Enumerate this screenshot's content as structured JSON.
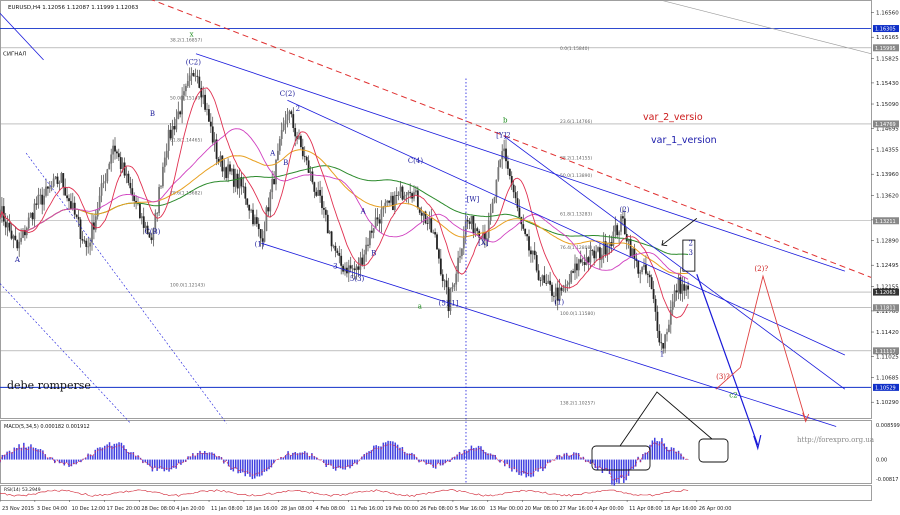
{
  "header": {
    "title": "EURUSD,H4 1.12056 1.12087 1.11999 1.12063"
  },
  "watermark": "http://forexpro.org.ua",
  "main_price": {
    "ylim": [
      1.1002,
      1.167
    ],
    "price_ticks": [
      "1.16560",
      "1.16165",
      "1.15825",
      "1.15430",
      "1.15090",
      "1.14695",
      "1.14355",
      "1.13960",
      "1.13620",
      "1.13225",
      "1.12890",
      "1.12495",
      "1.12155",
      "1.11760",
      "1.11420",
      "1.11025",
      "1.10685",
      "1.10290"
    ],
    "levels": [
      {
        "label": "1.16305",
        "value": 1.16305,
        "color": "#ffffff",
        "bg": "#1030c8"
      },
      {
        "label": "1.15995",
        "value": 1.15995,
        "color": "#ffffff",
        "bg": "#888888"
      },
      {
        "label": "1.14769",
        "value": 1.14769,
        "color": "#ffffff",
        "bg": "#888888"
      },
      {
        "label": "1.13211",
        "value": 1.13211,
        "color": "#ffffff",
        "bg": "#888888"
      },
      {
        "label": "1.12063",
        "value": 1.12063,
        "color": "#ffffff",
        "bg": "#333333"
      },
      {
        "label": "1.11811",
        "value": 1.11811,
        "color": "#ffffff",
        "bg": "#888888"
      },
      {
        "label": "1.11117",
        "value": 1.11117,
        "color": "#ffffff",
        "bg": "#888888"
      },
      {
        "label": "1.10529",
        "value": 1.10529,
        "color": "#ffffff",
        "bg": "#1030c8"
      }
    ],
    "fib_labels": [
      {
        "text": "38.2(1.16857)",
        "x": 42,
        "y": 1.1608
      },
      {
        "text": "0.0(1.15840)",
        "x": 615,
        "y": 1.1594
      },
      {
        "text": "50.0(1.15149)",
        "x": 42,
        "y": 1.1515
      },
      {
        "text": "23.6(1.14766)",
        "x": 615,
        "y": 1.1477
      },
      {
        "text": "61.8(1.14465)",
        "x": 42,
        "y": 1.1447
      },
      {
        "text": "38.2(1.14155)",
        "x": 615,
        "y": 1.1418
      },
      {
        "text": "50.0(1.13890)",
        "x": 615,
        "y": 1.139
      },
      {
        "text": "78.6(1.13682)",
        "x": 42,
        "y": 1.1362
      },
      {
        "text": "61.8(1.13283)",
        "x": 615,
        "y": 1.1328
      },
      {
        "text": "76.4(1.12808)",
        "x": 615,
        "y": 1.1274
      },
      {
        "text": "100.0(1.12143)",
        "x": 42,
        "y": 1.1214
      },
      {
        "text": "100.0(1.11580)",
        "x": 615,
        "y": 1.1168
      },
      {
        "text": "138.2(1.10257)",
        "x": 615,
        "y": 1.1024
      }
    ],
    "signal_label": "СИГНАЛ",
    "left_label": "debe romperse",
    "var2_label": "var_2_versio",
    "var1_label": "var_1_version",
    "wave_labels": [
      {
        "text": "x",
        "x": 0.22,
        "y": 1.1618,
        "color": "#1a8a1a"
      },
      {
        "text": "(C2)",
        "x": 0.222,
        "y": 1.1573,
        "color": "#1a1a9a"
      },
      {
        "text": "B",
        "x": 0.175,
        "y": 1.149,
        "color": "#1a1a9a"
      },
      {
        "text": "C(B)",
        "x": 0.175,
        "y": 1.13,
        "color": "#1a1a9a"
      },
      {
        "text": "A",
        "x": 0.02,
        "y": 1.1255,
        "color": "#1a1a9a"
      },
      {
        "text": "C(2)",
        "x": 0.33,
        "y": 1.1522,
        "color": "#1a1a9a"
      },
      {
        "text": "2",
        "x": 0.342,
        "y": 1.1498,
        "color": "#1a1a9a"
      },
      {
        "text": "A",
        "x": 0.313,
        "y": 1.1426,
        "color": "#1a1a9a"
      },
      {
        "text": "B",
        "x": 0.328,
        "y": 1.1411,
        "color": "#1a1a9a"
      },
      {
        "text": "(1)",
        "x": 0.298,
        "y": 1.128,
        "color": "#1a1a9a"
      },
      {
        "text": "C(4)",
        "x": 0.477,
        "y": 1.1414,
        "color": "#1a1a9a"
      },
      {
        "text": "A",
        "x": 0.417,
        "y": 1.1333,
        "color": "#1a1a9a"
      },
      {
        "text": "B",
        "x": 0.429,
        "y": 1.1265,
        "color": "#1a1a9a"
      },
      {
        "text": "3",
        "x": 0.385,
        "y": 1.1244,
        "color": "#1a1a9a"
      },
      {
        "text": "5(3)",
        "x": 0.41,
        "y": 1.1224,
        "color": "#1a1a9a"
      },
      {
        "text": "a",
        "x": 0.482,
        "y": 1.118,
        "color": "#1a8a1a"
      },
      {
        "text": "(5)[1]",
        "x": 0.515,
        "y": 1.1185,
        "color": "#1a1a9a"
      },
      {
        "text": "[W]",
        "x": 0.543,
        "y": 1.1352,
        "color": "#1a1a9a"
      },
      {
        "text": "[X]",
        "x": 0.555,
        "y": 1.1282,
        "color": "#1a1a9a"
      },
      {
        "text": "b",
        "x": 0.58,
        "y": 1.1479,
        "color": "#1a8a1a"
      },
      {
        "text": "[Y]2",
        "x": 0.578,
        "y": 1.1455,
        "color": "#1a1a9a"
      },
      {
        "text": "(1)",
        "x": 0.642,
        "y": 1.1186,
        "color": "#1a1a9a"
      },
      {
        "text": "(2)",
        "x": 0.717,
        "y": 1.1335,
        "color": "#1a1a9a"
      },
      {
        "text": "1",
        "x": 0.76,
        "y": 1.1103,
        "color": "#1a1a9a"
      },
      {
        "text": "c2",
        "x": 0.842,
        "y": 1.1037,
        "color": "#1a8a1a"
      },
      {
        "text": "(3)?",
        "x": 0.83,
        "y": 1.1066,
        "color": "#cc1a1a"
      },
      {
        "text": "(2)?",
        "x": 0.874,
        "y": 1.124,
        "color": "#cc1a1a"
      },
      {
        "text": "3",
        "x": 0.793,
        "y": 1.1266,
        "color": "#1a1a9a"
      },
      {
        "text": "2",
        "x": 0.793,
        "y": 1.1281,
        "color": "#1a1a9a"
      }
    ]
  },
  "date_ticks": [
    "23 Nov 2015",
    "3 Dec 04:00",
    "10 Dec 12:00",
    "17 Dec 20:00",
    "28 Dec 08:00",
    "4 Jan 20:00",
    "11 Jan 08:00",
    "18 Jan 16:00",
    "28 Jan 08:00",
    "4 Feb 08:00",
    "11 Feb 16:00",
    "19 Feb 00:00",
    "26 Feb 08:00",
    "5 Mar 16:00",
    "13 Mar 00:00",
    "20 Mar 08:00",
    "27 Mar 16:00",
    "4 Apr 00:00",
    "11 Apr 08:00",
    "18 Apr 16:00",
    "26 Apr 00:00"
  ],
  "macd": {
    "label": "MACD(5,34,5) 0.000182 0.001912",
    "ticks": [
      "0.008599",
      "0.00",
      "-0.00817"
    ]
  },
  "rsi": {
    "label": "RSI(14) 53.2949"
  },
  "colors": {
    "candles": "#222222",
    "trendline": "#1a1adc",
    "red_dashed": "#e03030",
    "ma_red": "#e03050",
    "ma_green": "#2c8a2c",
    "ma_orange": "#e8a020",
    "ma_magenta": "#d040c0",
    "macd_bar": "#4040e0",
    "macd_signal": "#e03050"
  },
  "chart_data": {
    "type": "candlestick",
    "title": "EURUSD,H4 1.12056 1.12087 1.11999 1.12063",
    "ylim": [
      1.1002,
      1.167
    ],
    "price_keypoints": [
      {
        "t": 0.0,
        "p": 1.134
      },
      {
        "t": 0.02,
        "p": 1.1275
      },
      {
        "t": 0.04,
        "p": 1.1345
      },
      {
        "t": 0.07,
        "p": 1.139
      },
      {
        "t": 0.1,
        "p": 1.1275
      },
      {
        "t": 0.13,
        "p": 1.1445
      },
      {
        "t": 0.16,
        "p": 1.133
      },
      {
        "t": 0.175,
        "p": 1.129
      },
      {
        "t": 0.19,
        "p": 1.144
      },
      {
        "t": 0.225,
        "p": 1.157
      },
      {
        "t": 0.25,
        "p": 1.142
      },
      {
        "t": 0.28,
        "p": 1.137
      },
      {
        "t": 0.3,
        "p": 1.129
      },
      {
        "t": 0.33,
        "p": 1.15
      },
      {
        "t": 0.36,
        "p": 1.138
      },
      {
        "t": 0.39,
        "p": 1.125
      },
      {
        "t": 0.41,
        "p": 1.124
      },
      {
        "t": 0.43,
        "p": 1.132
      },
      {
        "t": 0.47,
        "p": 1.138
      },
      {
        "t": 0.5,
        "p": 1.129
      },
      {
        "t": 0.515,
        "p": 1.1185
      },
      {
        "t": 0.535,
        "p": 1.132
      },
      {
        "t": 0.56,
        "p": 1.13
      },
      {
        "t": 0.578,
        "p": 1.144
      },
      {
        "t": 0.6,
        "p": 1.13
      },
      {
        "t": 0.625,
        "p": 1.1215
      },
      {
        "t": 0.645,
        "p": 1.12
      },
      {
        "t": 0.665,
        "p": 1.1255
      },
      {
        "t": 0.69,
        "p": 1.127
      },
      {
        "t": 0.715,
        "p": 1.132
      },
      {
        "t": 0.73,
        "p": 1.125
      },
      {
        "t": 0.745,
        "p": 1.123
      },
      {
        "t": 0.76,
        "p": 1.1115
      },
      {
        "t": 0.778,
        "p": 1.122
      },
      {
        "t": 0.79,
        "p": 1.1206
      }
    ]
  }
}
